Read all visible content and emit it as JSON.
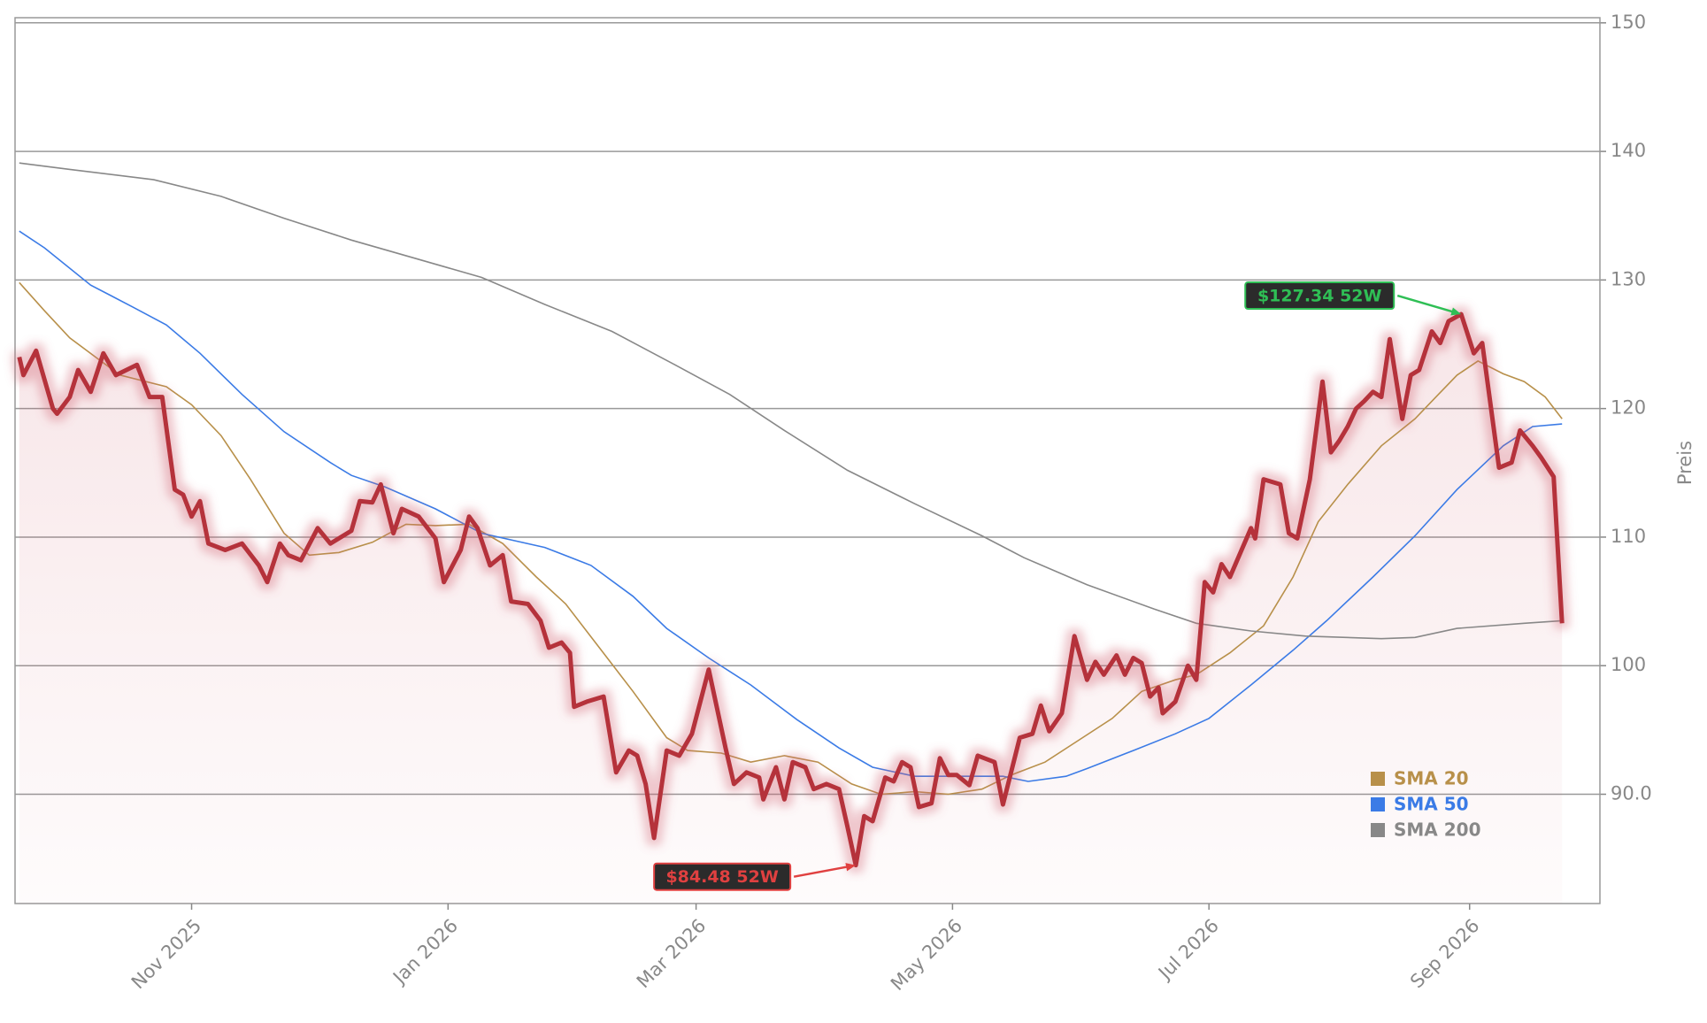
{
  "chart_data": {
    "type": "line",
    "y_label": "Preis",
    "xlim": [
      "2025-09-20",
      "2026-10-02"
    ],
    "ylim": [
      81.5,
      150.4
    ],
    "xticks": [
      {
        "value": "2025-11-01",
        "label": "Nov 2025"
      },
      {
        "value": "2026-01-01",
        "label": "Jan 2026"
      },
      {
        "value": "2026-03-01",
        "label": "Mar 2026"
      },
      {
        "value": "2026-05-01",
        "label": "May 2026"
      },
      {
        "value": "2026-07-01",
        "label": "Jul 2026"
      },
      {
        "value": "2026-09-01",
        "label": "Sep 2026"
      }
    ],
    "yticks": [
      {
        "value": 90,
        "label": "90.0"
      },
      100,
      110,
      120,
      130,
      140,
      150
    ],
    "grid": true,
    "legend": "lower right",
    "color": "#b5323a",
    "x": [
      "2025-09-21",
      "2025-09-22",
      "2025-09-25",
      "2025-09-29",
      "2025-09-30",
      "2025-10-03",
      "2025-10-05",
      "2025-10-08",
      "2025-10-11",
      "2025-10-14",
      "2025-10-19",
      "2025-10-22",
      "2025-10-25",
      "2025-10-28",
      "2025-10-30",
      "2025-11-01",
      "2025-11-03",
      "2025-11-05",
      "2025-11-09",
      "2025-11-13",
      "2025-11-17",
      "2025-11-19",
      "2025-11-22",
      "2025-11-24",
      "2025-11-27",
      "2025-12-01",
      "2025-12-04",
      "2025-12-09",
      "2025-12-11",
      "2025-12-14",
      "2025-12-16",
      "2025-12-19",
      "2025-12-21",
      "2025-12-25",
      "2025-12-29",
      "2025-12-31",
      "2026-01-04",
      "2026-01-06",
      "2026-01-08",
      "2026-01-11",
      "2026-01-14",
      "2026-01-16",
      "2026-01-20",
      "2026-01-23",
      "2026-01-25",
      "2026-01-28",
      "2026-01-30",
      "2026-01-31",
      "2026-02-03",
      "2026-02-07",
      "2026-02-10",
      "2026-02-13",
      "2026-02-15",
      "2026-02-17",
      "2026-02-19",
      "2026-02-22",
      "2026-02-25",
      "2026-02-28",
      "2026-03-04",
      "2026-03-08",
      "2026-03-10",
      "2026-03-13",
      "2026-03-16",
      "2026-03-17",
      "2026-03-20",
      "2026-03-22",
      "2026-03-24",
      "2026-03-27",
      "2026-03-29",
      "2026-04-01",
      "2026-04-04",
      "2026-04-06",
      "2026-04-08",
      "2026-04-10",
      "2026-04-12",
      "2026-04-15",
      "2026-04-17",
      "2026-04-19",
      "2026-04-21",
      "2026-04-23",
      "2026-04-26",
      "2026-04-28",
      "2026-04-30",
      "2026-05-02",
      "2026-05-05",
      "2026-05-07",
      "2026-05-11",
      "2026-05-13",
      "2026-05-17",
      "2026-05-20",
      "2026-05-22",
      "2026-05-24",
      "2026-05-27",
      "2026-05-30",
      "2026-06-02",
      "2026-06-04",
      "2026-06-06",
      "2026-06-09",
      "2026-06-11",
      "2026-06-13",
      "2026-06-15",
      "2026-06-17",
      "2026-06-19",
      "2026-06-20",
      "2026-06-23",
      "2026-06-26",
      "2026-06-28",
      "2026-06-30",
      "2026-07-02",
      "2026-07-04",
      "2026-07-06",
      "2026-07-11",
      "2026-07-12",
      "2026-07-14",
      "2026-07-18",
      "2026-07-20",
      "2026-07-22",
      "2026-07-25",
      "2026-07-28",
      "2026-07-30",
      "2026-08-01",
      "2026-08-03",
      "2026-08-05",
      "2026-08-07",
      "2026-08-09",
      "2026-08-11",
      "2026-08-13",
      "2026-08-16",
      "2026-08-18",
      "2026-08-20",
      "2026-08-23",
      "2026-08-25",
      "2026-08-27",
      "2026-08-30",
      "2026-09-02",
      "2026-09-04",
      "2026-09-08",
      "2026-09-11",
      "2026-09-13",
      "2026-09-16",
      "2026-09-18",
      "2026-09-21",
      "2026-09-23"
    ],
    "values": [
      124,
      122.6,
      124.5,
      120,
      119.6,
      120.9,
      123,
      121.3,
      124.3,
      122.6,
      123.4,
      120.9,
      120.9,
      113.7,
      113.3,
      111.6,
      112.8,
      109.5,
      109,
      109.5,
      107.8,
      106.5,
      109.5,
      108.6,
      108.2,
      110.7,
      109.5,
      110.5,
      112.8,
      112.7,
      114.1,
      110.3,
      112.2,
      111.6,
      109.9,
      106.5,
      109,
      111.6,
      110.7,
      107.8,
      108.6,
      105,
      104.8,
      103.5,
      101.4,
      101.8,
      101,
      96.8,
      97.2,
      97.6,
      91.7,
      93.4,
      93,
      90.8,
      86.6,
      93.4,
      93,
      94.7,
      99.7,
      93.6,
      90.8,
      91.7,
      91.3,
      89.6,
      92.1,
      89.6,
      92.5,
      92.1,
      90.4,
      90.8,
      90.4,
      87.5,
      84.48,
      88.3,
      87.9,
      91.3,
      91,
      92.5,
      92.1,
      89,
      89.3,
      92.8,
      91.5,
      91.5,
      90.7,
      93,
      92.5,
      89.2,
      94.4,
      94.7,
      96.9,
      94.9,
      96.3,
      102.3,
      98.9,
      100.3,
      99.3,
      100.8,
      99.3,
      100.6,
      100.2,
      97.6,
      98.3,
      96.3,
      97.2,
      100,
      98.9,
      106.5,
      105.7,
      107.9,
      106.9,
      110.7,
      109.9,
      114.5,
      114.1,
      110.3,
      109.9,
      114.5,
      122.1,
      116.6,
      117.5,
      118.6,
      120,
      120.6,
      121.3,
      120.9,
      125.4,
      119.2,
      122.6,
      123,
      126,
      125.1,
      126.8,
      127.34,
      124.3,
      125.1,
      115.4,
      115.8,
      118.3,
      117.1,
      116.2,
      114.7,
      103.3
    ],
    "series": [
      {
        "name": "SMA 20",
        "color": "#b8904a",
        "x": [
          "2025-09-21",
          "2025-09-27",
          "2025-10-03",
          "2025-10-10",
          "2025-10-15",
          "2025-10-26",
          "2025-11-01",
          "2025-11-08",
          "2025-11-15",
          "2025-11-23",
          "2025-11-29",
          "2025-12-06",
          "2025-12-14",
          "2025-12-22",
          "2025-12-29",
          "2026-01-06",
          "2026-01-14",
          "2026-01-22",
          "2026-01-29",
          "2026-02-06",
          "2026-02-14",
          "2026-02-22",
          "2026-02-27",
          "2026-03-07",
          "2026-03-14",
          "2026-03-22",
          "2026-03-30",
          "2026-04-07",
          "2026-04-14",
          "2026-04-22",
          "2026-04-30",
          "2026-05-08",
          "2026-05-15",
          "2026-05-23",
          "2026-05-31",
          "2026-06-08",
          "2026-06-15",
          "2026-06-23",
          "2026-06-28",
          "2026-07-06",
          "2026-07-14",
          "2026-07-21",
          "2026-07-27",
          "2026-08-03",
          "2026-08-11",
          "2026-08-19",
          "2026-08-24",
          "2026-08-29",
          "2026-09-03",
          "2026-09-09",
          "2026-09-14",
          "2026-09-19",
          "2026-09-23"
        ],
        "values": [
          129.8,
          127.6,
          125.5,
          123.8,
          122.6,
          121.7,
          120.3,
          117.9,
          114.5,
          110.3,
          108.6,
          108.8,
          109.6,
          111,
          110.9,
          111,
          109.5,
          106.9,
          104.8,
          101.4,
          98,
          94.4,
          93.4,
          93.2,
          92.5,
          93,
          92.5,
          90.8,
          90,
          90.2,
          90,
          90.4,
          91.5,
          92.5,
          94.2,
          95.9,
          98,
          98.9,
          99.3,
          101,
          103.1,
          106.9,
          111.2,
          114.1,
          117.1,
          119.2,
          120.9,
          122.6,
          123.7,
          122.7,
          122.1,
          120.9,
          119.2
        ]
      },
      {
        "name": "SMA 50",
        "color": "#3b7be6",
        "x": [
          "2025-09-21",
          "2025-09-27",
          "2025-10-08",
          "2025-10-18",
          "2025-10-26",
          "2025-11-03",
          "2025-11-13",
          "2025-11-23",
          "2025-12-04",
          "2025-12-09",
          "2025-12-17",
          "2025-12-29",
          "2026-01-09",
          "2026-01-24",
          "2026-02-04",
          "2026-02-14",
          "2026-02-22",
          "2026-03-04",
          "2026-03-14",
          "2026-03-25",
          "2026-04-04",
          "2026-04-12",
          "2026-04-22",
          "2026-05-02",
          "2026-05-13",
          "2026-05-19",
          "2026-05-28",
          "2026-06-02",
          "2026-06-13",
          "2026-06-23",
          "2026-07-01",
          "2026-07-11",
          "2026-07-21",
          "2026-07-29",
          "2026-08-09",
          "2026-08-19",
          "2026-08-29",
          "2026-09-09",
          "2026-09-16",
          "2026-09-23"
        ],
        "values": [
          133.8,
          132.5,
          129.6,
          127.9,
          126.5,
          124.3,
          121.1,
          118.2,
          115.8,
          114.8,
          113.9,
          112.2,
          110.3,
          109.2,
          107.8,
          105.4,
          102.9,
          100.6,
          98.5,
          95.8,
          93.6,
          92.1,
          91.4,
          91.4,
          91.4,
          91,
          91.4,
          92,
          93.4,
          94.7,
          95.9,
          98.5,
          101.2,
          103.5,
          106.9,
          110.1,
          113.7,
          117.1,
          118.6,
          118.8
        ]
      },
      {
        "name": "SMA 200",
        "color": "#888888",
        "x": [
          "2025-09-21",
          "2025-10-03",
          "2025-10-23",
          "2025-11-08",
          "2025-11-23",
          "2025-12-09",
          "2025-12-24",
          "2026-01-09",
          "2026-01-24",
          "2026-02-09",
          "2026-02-24",
          "2026-03-09",
          "2026-03-22",
          "2026-04-06",
          "2026-04-22",
          "2026-05-08",
          "2026-05-18",
          "2026-06-02",
          "2026-06-18",
          "2026-06-28",
          "2026-07-11",
          "2026-07-24",
          "2026-08-11",
          "2026-08-19",
          "2026-08-29",
          "2026-09-14",
          "2026-09-23"
        ],
        "values": [
          139.1,
          138.6,
          137.8,
          136.5,
          134.8,
          133.1,
          131.7,
          130.2,
          128.1,
          126,
          123.4,
          121.1,
          118.3,
          115.2,
          112.6,
          110.1,
          108.4,
          106.3,
          104.4,
          103.3,
          102.7,
          102.3,
          102.1,
          102.2,
          102.9,
          103.3,
          103.5
        ]
      }
    ],
    "annotations": [
      {
        "text": "$127.34 52W",
        "x": "2026-08-30",
        "y": 127.34,
        "color": "#2fbf55"
      },
      {
        "text": "$84.48 52W",
        "x": "2026-04-08",
        "y": 84.48,
        "color": "#e04040"
      }
    ]
  }
}
